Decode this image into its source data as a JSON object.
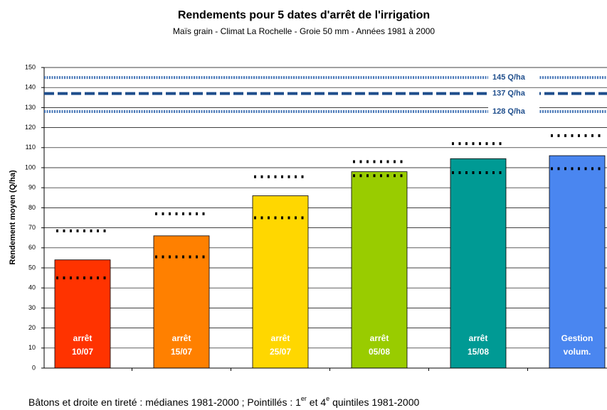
{
  "chart_data": {
    "type": "bar",
    "title": "Rendements pour 5 dates d'arrêt de l'irrigation",
    "subtitle": "Maïs grain -    Climat La Rochelle - Groie 50 mm - Années 1981 à 2000",
    "y_label": "Rendement moyen (Q/ha)",
    "categories": [
      [
        "arrêt",
        "10/07"
      ],
      [
        "arrêt",
        "15/07"
      ],
      [
        "arrêt",
        "25/07"
      ],
      [
        "arrêt",
        "05/08"
      ],
      [
        "arrêt",
        "15/08"
      ],
      [
        "Gestion",
        "volum."
      ]
    ],
    "values": [
      54,
      66,
      86,
      98,
      104.5,
      106
    ],
    "colors": [
      "#ff3300",
      "#ff8000",
      "#ffd700",
      "#99cc00",
      "#009a94",
      "#4a86f0"
    ],
    "quintile_1": [
      45,
      55.5,
      75,
      96,
      97.5,
      99.5
    ],
    "quintile_4": [
      68.5,
      77,
      95.5,
      103,
      112,
      116
    ],
    "reference_lines": [
      {
        "value": 145,
        "label": "145 Q/ha",
        "style": "dotted"
      },
      {
        "value": 137,
        "label": "137 Q/ha",
        "style": "dashed"
      },
      {
        "value": 128,
        "label": "128 Q/ha",
        "style": "dotted"
      }
    ],
    "ylim": [
      0,
      150
    ],
    "yticks": [
      0,
      10,
      20,
      30,
      40,
      50,
      60,
      70,
      80,
      90,
      100,
      110,
      120,
      130,
      140,
      150
    ],
    "grid": true,
    "footnote": [
      {
        "text": "Bâtons et droite en tireté : médianes 1981-2000 ; Pointillés : 1"
      },
      {
        "text": "er",
        "sup": true
      },
      {
        "text": " et 4"
      },
      {
        "text": "e",
        "sup": true
      },
      {
        "text": " quintiles 1981-2000"
      }
    ]
  }
}
